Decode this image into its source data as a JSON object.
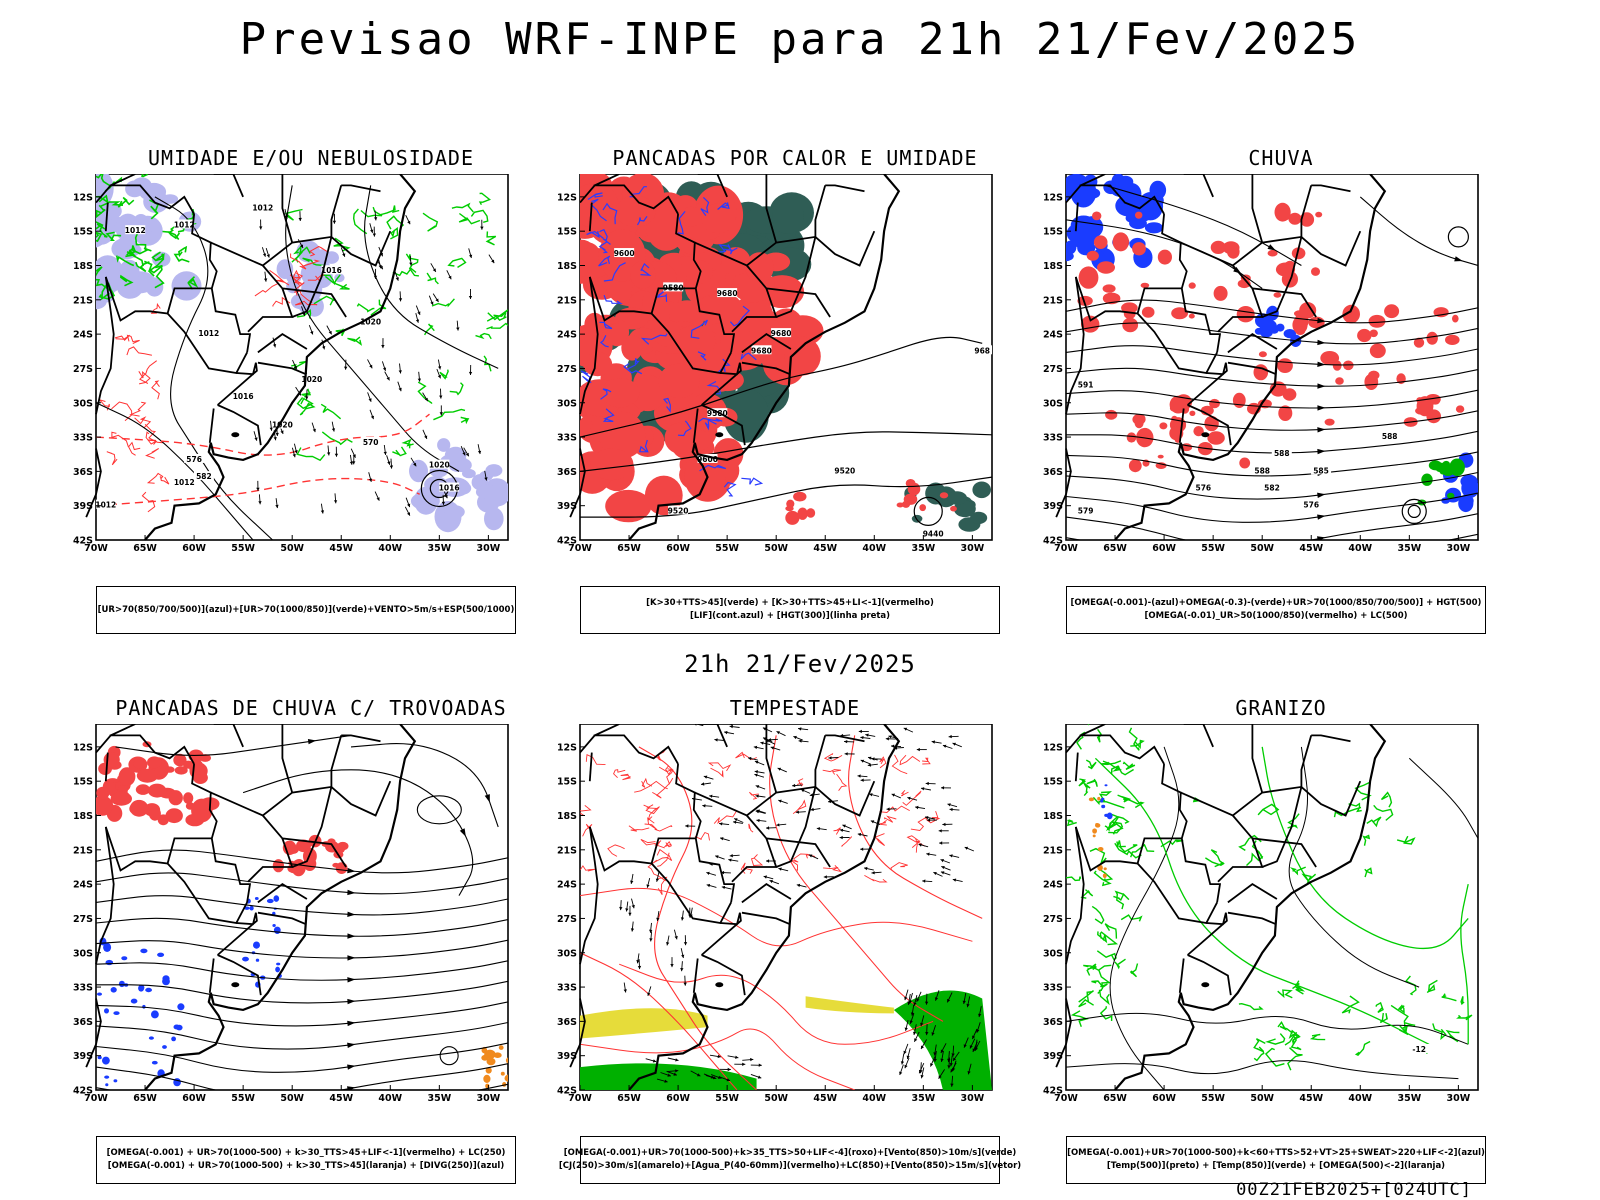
{
  "title": "Previsao WRF-INPE  para 21h 21/Fev/2025",
  "subtitle": "21h 21/Fev/2025",
  "run_stamp": "00Z21FEB2025+[024UTC]",
  "axes": {
    "lat_ticks": [
      "12S",
      "15S",
      "18S",
      "21S",
      "24S",
      "27S",
      "30S",
      "33S",
      "36S",
      "39S",
      "42S"
    ],
    "lon_ticks": [
      "70W",
      "65W",
      "60W",
      "55W",
      "50W",
      "45W",
      "40W",
      "35W",
      "30W"
    ]
  },
  "panels": [
    {
      "title": "UMIDADE E/OU NEBULOSIDADE",
      "legend": [
        "[UR>70(850/700/500)](azul)+[UR>70(1000/850)](verde)+VENTO>5m/s+ESP(500/1000)"
      ],
      "contour_labels": [
        "1012",
        "1012",
        "1012",
        "1016",
        "1020",
        "1012",
        "1016",
        "1020",
        "1020",
        "1012",
        "570",
        "576",
        "582",
        "1016",
        "1020",
        "1012"
      ]
    },
    {
      "title": "PANCADAS POR CALOR E UMIDADE",
      "legend": [
        "[K>30+TTS>45](verde) + [K>30+TTS>45+LI<-1](vermelho)",
        "[LIF](cont.azul) + [HGT(300)](linha preta)"
      ],
      "contour_labels": [
        "9600",
        "9580",
        "9680",
        "9680",
        "9680",
        "9580",
        "9600",
        "9520",
        "9520",
        "9440",
        "968"
      ]
    },
    {
      "title": "CHUVA",
      "legend": [
        "[OMEGA(-0.001)-(azul)+OMEGA(-0.3)-(verde)+UR>70(1000/850/700/500)] + HGT(500)",
        "[OMEGA(-0.01)_UR>50(1000/850)(vermelho) + LC(500)"
      ],
      "contour_labels": [
        "588",
        "588",
        "588",
        "582",
        "576",
        "576",
        "579",
        "591",
        "585"
      ]
    },
    {
      "title": "PANCADAS DE CHUVA C/ TROVOADAS",
      "legend": [
        "[OMEGA(-0.001) + UR>70(1000-500) + k>30_TTS>45+LIF<-1](vermelho) + LC(250)",
        "[OMEGA(-0.001) + UR>70(1000-500) + k>30_TTS>45](laranja) + [DIVG(250)](azul)"
      ],
      "contour_labels": []
    },
    {
      "title": "TEMPESTADE",
      "legend": [
        "[OMEGA(-0.001)+UR>70(1000-500)+k>35_TTS>50+LIF<-4](roxo)+[Vento(850)>10m/s](verde)",
        "[CJ(250)>30m/s](amarelo)+[Agua_P(40-60mm)](vermelho)+LC(850)+[Vento(850)>15m/s](vetor)"
      ],
      "contour_labels": []
    },
    {
      "title": "GRANIZO",
      "legend": [
        "[OMEGA(-0.001)+UR>70(1000-500)+k<60+TTS>52+VT>25+SWEAT>220+LIF<-2](azul)",
        "[Temp(500)](preto) + [Temp(850)](verde) + [OMEGA(500)<-2](laranja)"
      ],
      "contour_labels": [
        "-12"
      ]
    }
  ],
  "colors": {
    "blue_shade": "#b7b7ef",
    "green_line": "#00cc00",
    "red_line": "#ff3333",
    "red_fill": "#f24545",
    "dark_teal": "#2f5d55",
    "blue_fill": "#1a3cff",
    "yellow_fill": "#e6dc3a",
    "green_fill": "#00b000",
    "orange_fill": "#f08a1e",
    "black": "#000000"
  }
}
